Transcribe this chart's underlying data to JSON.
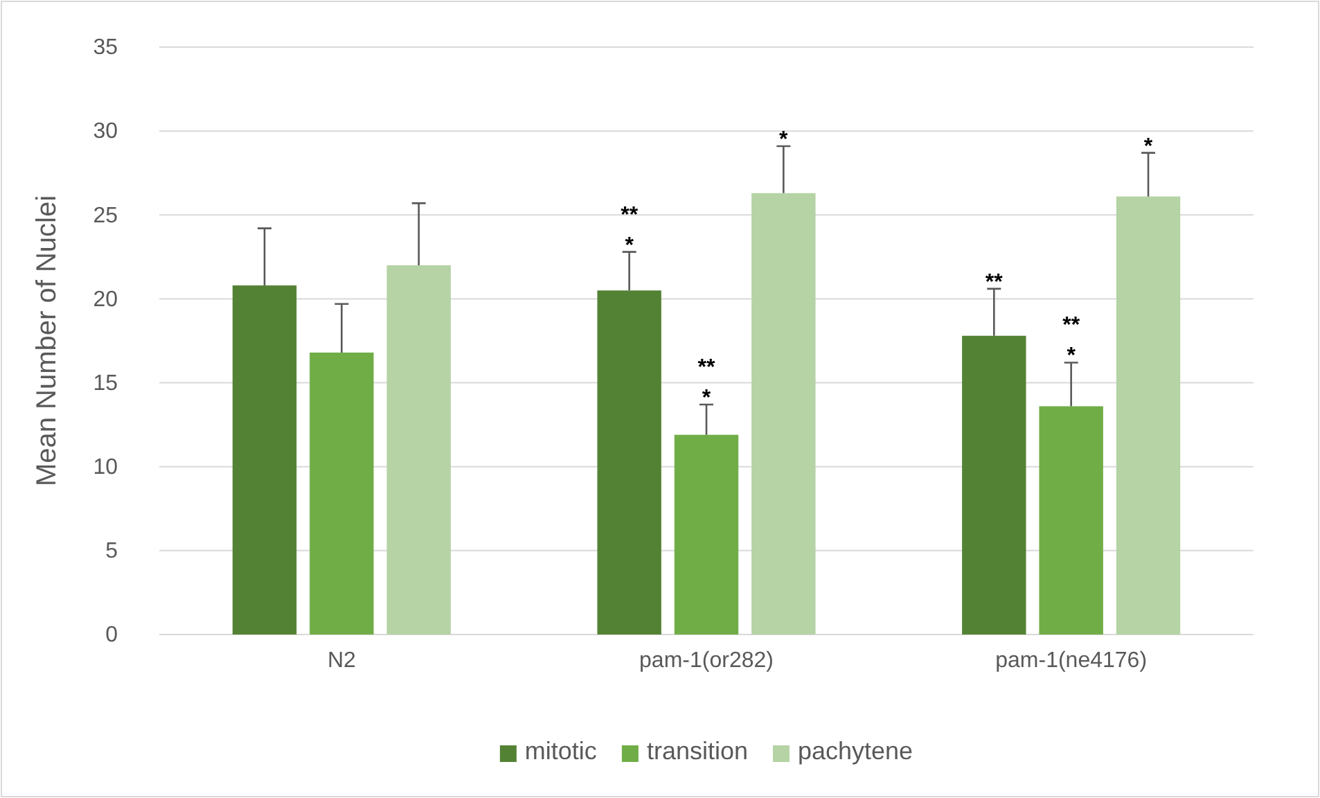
{
  "chart_data": {
    "type": "bar",
    "ylabel": "Mean Number of Nuclei",
    "categories": [
      "N2",
      "pam-1(or282)",
      "pam-1(ne4176)"
    ],
    "ylim": [
      0,
      35
    ],
    "yticks": [
      0,
      5,
      10,
      15,
      20,
      25,
      30,
      35
    ],
    "grid": "y",
    "legend": "bottom",
    "series": [
      {
        "name": "mitotic",
        "color": "#548235",
        "values": [
          20.8,
          20.5,
          17.8
        ],
        "errors": [
          [
            20.8,
            24.2
          ],
          [
            20.5,
            22.8
          ],
          [
            17.8,
            20.6
          ]
        ],
        "value_labels": [
          null,
          "**\n*",
          "**"
        ]
      },
      {
        "name": "transition",
        "color": "#70ad47",
        "values": [
          16.8,
          11.9,
          13.6
        ],
        "errors": [
          [
            16.8,
            19.7
          ],
          [
            11.9,
            13.7
          ],
          [
            13.6,
            16.2
          ]
        ],
        "value_labels": [
          null,
          "**\n*",
          "**\n*"
        ]
      },
      {
        "name": "pachytene",
        "color": "#b5d3a5",
        "values": [
          22.0,
          26.3,
          26.1
        ],
        "errors": [
          [
            22.0,
            25.7
          ],
          [
            26.3,
            29.1
          ],
          [
            26.1,
            28.7
          ]
        ],
        "value_labels": [
          null,
          "*",
          "*"
        ]
      }
    ]
  }
}
